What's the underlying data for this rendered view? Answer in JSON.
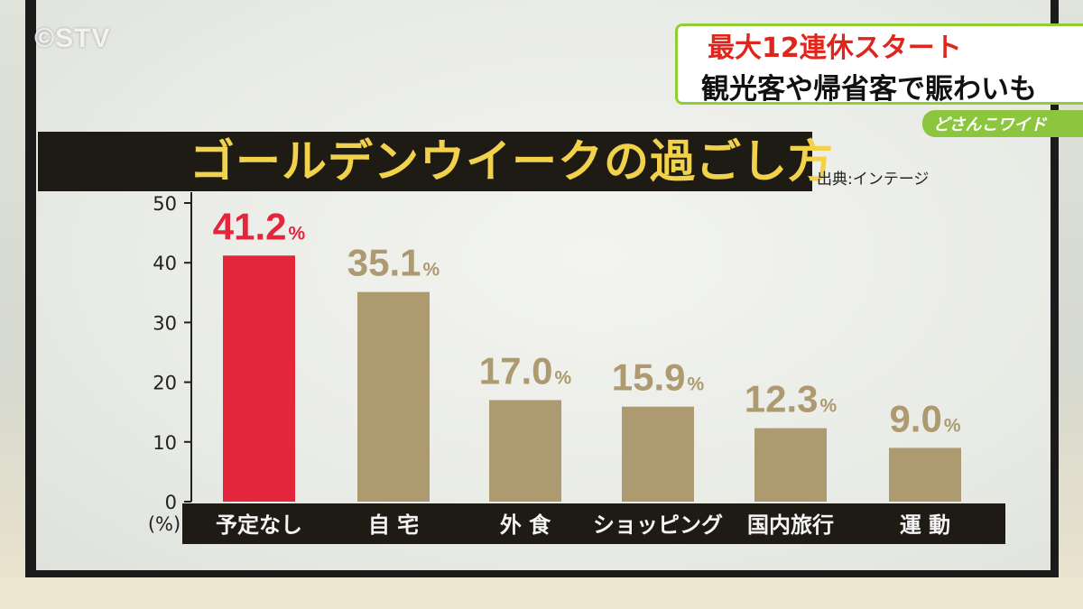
{
  "broadcaster": {
    "logo": "©STV"
  },
  "caption": {
    "line1": "最大12連休スタート",
    "line2": "観光客や帰省客で賑わいも"
  },
  "program": {
    "name": "どさんこワイド"
  },
  "colors": {
    "highlight_bar": "#e3263c",
    "normal_bar": "#ad9a70",
    "title_text": "#f2d24a",
    "title_bg": "#1e1b15",
    "caption_accent": "#8cc63f"
  },
  "chart_data": {
    "type": "bar",
    "title": "ゴールデンウイークの過ごし方",
    "source": "出典:インテージ",
    "ylabel": "(%)",
    "ylim": [
      0,
      50
    ],
    "yticks": [
      0,
      10,
      20,
      30,
      40,
      50
    ],
    "categories": [
      "予定なし",
      "自 宅",
      "外 食",
      "ショッピング",
      "国内旅行",
      "運 動"
    ],
    "values": [
      41.2,
      35.1,
      17.0,
      15.9,
      12.3,
      9.0
    ],
    "value_labels": [
      "41.2",
      "35.1",
      "17.0",
      "15.9",
      "12.3",
      "9.0"
    ],
    "unit": "%",
    "highlight_index": 0,
    "grid": false
  }
}
